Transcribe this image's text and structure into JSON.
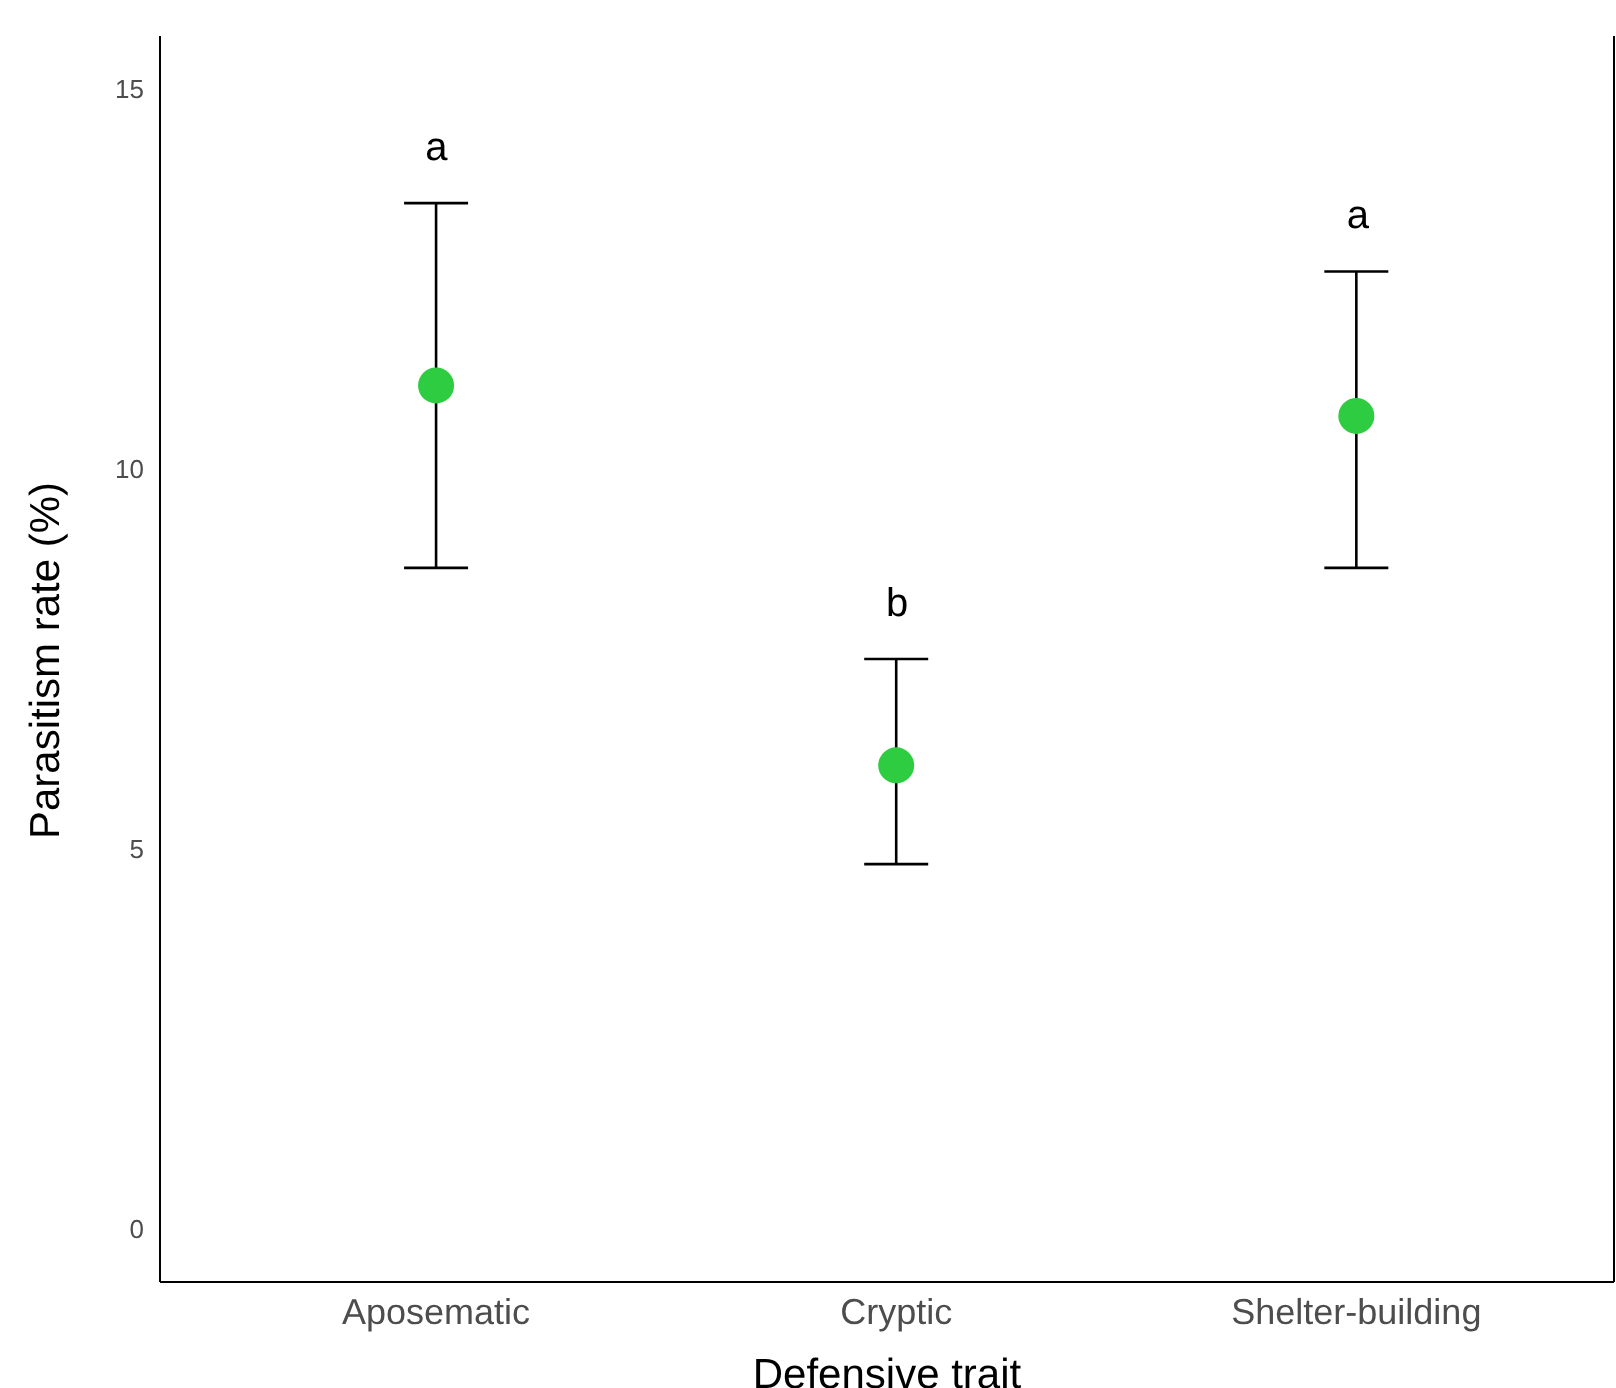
{
  "chart_data": {
    "type": "scatter",
    "xlabel": "Defensive trait",
    "ylabel": "Parasitism rate (%)",
    "categories": [
      "Aposematic",
      "Cryptic",
      "Shelter-building"
    ],
    "values": [
      11.1,
      6.1,
      10.7
    ],
    "errors": [
      [
        8.7,
        13.5
      ],
      [
        4.8,
        7.5
      ],
      [
        8.7,
        12.6
      ]
    ],
    "color": "#2ecc40",
    "marker": "circle",
    "grid": false,
    "legend": false,
    "ylim": [
      -0.7,
      15.7
    ],
    "yticks": [
      0,
      5,
      10,
      15
    ],
    "annotations": [
      "a",
      "b",
      "a"
    ]
  }
}
